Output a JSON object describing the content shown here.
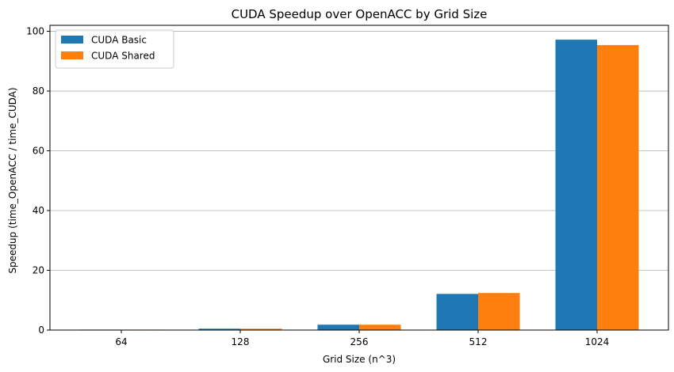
{
  "chart_data": {
    "type": "bar",
    "title": "CUDA Speedup over OpenACC by Grid Size",
    "xlabel": "Grid Size (n^3)",
    "ylabel": "Speedup (time_OpenACC / time_CUDA)",
    "categories": [
      "64",
      "128",
      "256",
      "512",
      "1024"
    ],
    "series": [
      {
        "name": "CUDA Basic",
        "color": "#1f77b4",
        "values": [
          0.15,
          0.45,
          1.8,
          12.1,
          97.2
        ]
      },
      {
        "name": "CUDA Shared",
        "color": "#ff7f0e",
        "values": [
          0.15,
          0.45,
          1.8,
          12.4,
          95.4
        ]
      }
    ],
    "ylim": [
      0,
      102
    ],
    "yticks": [
      0,
      20,
      40,
      60,
      80,
      100
    ],
    "grid": "y",
    "legend": "top-left"
  }
}
